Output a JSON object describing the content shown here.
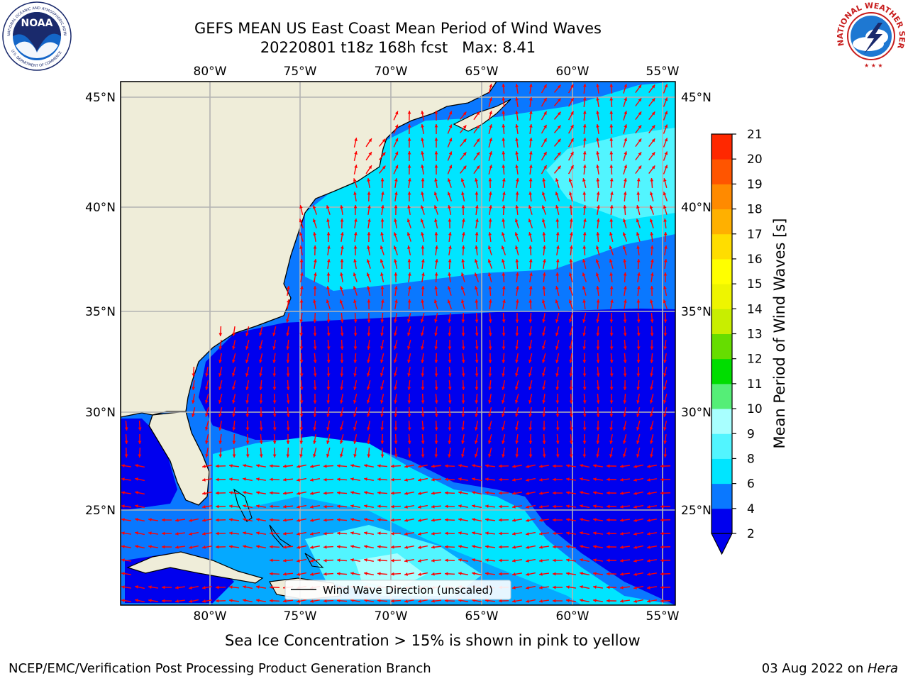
{
  "header": {
    "title_line1": "GEFS MEAN US East Coast Mean Period of Wind Waves",
    "title_line2": "20220801 t18z 168h fcst   Max: 8.41",
    "noaa_logo_text": "NOAA",
    "noaa_ring_text": "NATIONAL OCEANIC AND ATMOSPHERIC ADMINISTRATION",
    "noaa_ring_bottom": "U.S. DEPARTMENT OF COMMERCE",
    "nws_ring_text": "NATIONAL WEATHER SERVICE"
  },
  "map": {
    "lon_labels": [
      "80°W",
      "75°W",
      "70°W",
      "65°W",
      "60°W",
      "55°W"
    ],
    "lat_labels": [
      "45°N",
      "40°N",
      "35°N",
      "30°N",
      "25°N"
    ],
    "legend_label": "Wind Wave Direction (unscaled)",
    "land_color": "#efedd9",
    "vector_color": "#ff0000"
  },
  "colorbar": {
    "label": "Mean Period of Wind Waves [s]",
    "ticks": [
      "2",
      "4",
      "6",
      "8",
      "9",
      "10",
      "11",
      "12",
      "13",
      "14",
      "15",
      "16",
      "17",
      "18",
      "19",
      "20",
      "21"
    ],
    "colors": [
      "#0000ee",
      "#0a78ff",
      "#00e5ff",
      "#52f5ff",
      "#a8ffff",
      "#55ee77",
      "#00dd00",
      "#66dd00",
      "#c8ee00",
      "#eef500",
      "#ffff00",
      "#ffdd00",
      "#ffb000",
      "#ff8a00",
      "#ff5500",
      "#ff2800",
      "#ff0000"
    ],
    "extend_color": "#0000ee"
  },
  "footer": {
    "sea_ice_note": "Sea Ice Concentration > 15% is shown in pink to yellow",
    "branch": "NCEP/EMC/Verification Post Processing Product Generation Branch",
    "date": "03 Aug 2022 on ",
    "machine": "Hera"
  }
}
